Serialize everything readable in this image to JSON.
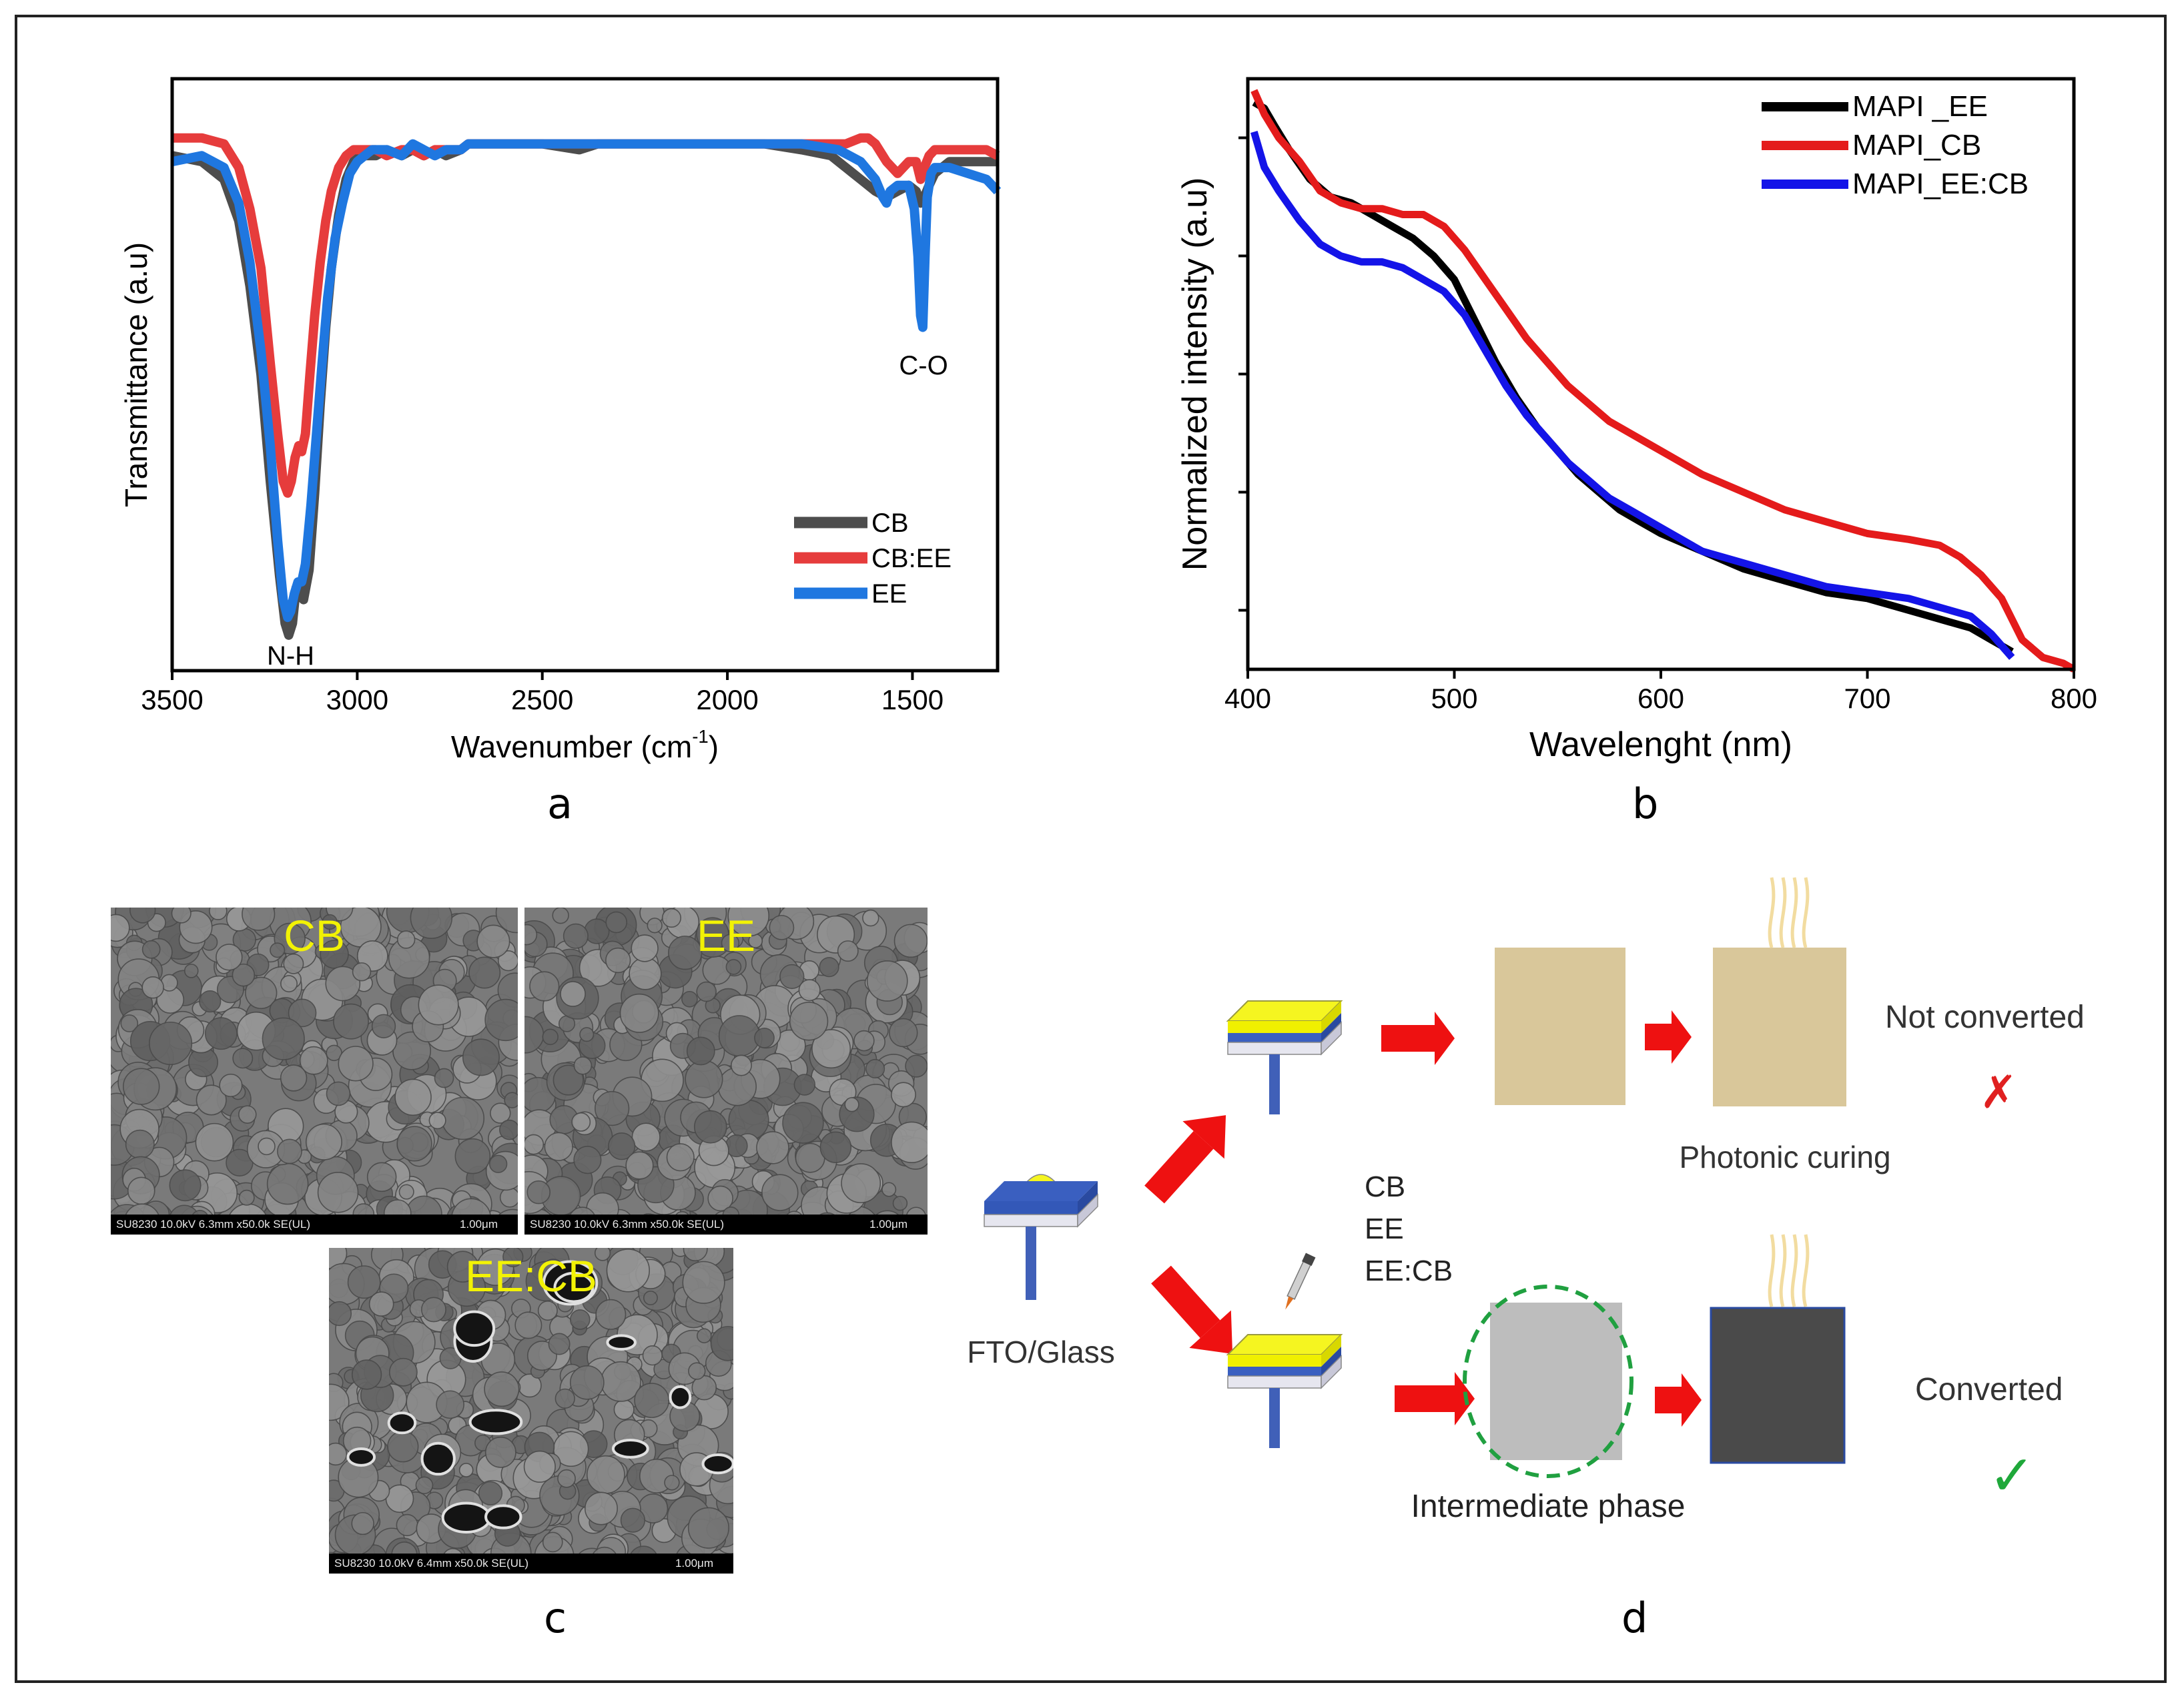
{
  "chart_data": [
    {
      "type": "line",
      "panel": "a",
      "title": "",
      "xlabel": "Wavenumber (cm",
      "xlabel_sup": "-1",
      "xlabel_end": ")",
      "ylabel": "Transmittance (a.u)",
      "xlim": [
        3500,
        1270
      ],
      "ylim": [
        0,
        100
      ],
      "xticks": [
        3500,
        3000,
        2500,
        2000,
        1500
      ],
      "annotations": [
        {
          "text": "N-H",
          "x": 3180,
          "y": 6
        },
        {
          "text": "C-O",
          "x": 1470,
          "y": 55
        }
      ],
      "legend": "lower-right",
      "series": [
        {
          "name": "CB",
          "color": "#4d4d4d",
          "x": [
            3500,
            3420,
            3360,
            3320,
            3290,
            3260,
            3235,
            3210,
            3195,
            3185,
            3175,
            3165,
            3155,
            3145,
            3130,
            3115,
            3100,
            3085,
            3070,
            3050,
            3030,
            3010,
            2990,
            2970,
            2950,
            2920,
            2880,
            2850,
            2820,
            2790,
            2760,
            2720,
            2700,
            2650,
            2600,
            2500,
            2400,
            2350,
            2300,
            2200,
            2100,
            2000,
            1900,
            1800,
            1720,
            1680,
            1640,
            1600,
            1570,
            1540,
            1510,
            1490,
            1478,
            1468,
            1455,
            1440,
            1400,
            1350,
            1300,
            1270
          ],
          "y": [
            87,
            86,
            83,
            76,
            65,
            50,
            32,
            16,
            8,
            6,
            8,
            14,
            14,
            12,
            17,
            30,
            45,
            58,
            68,
            77,
            83,
            86,
            87,
            87,
            87,
            88,
            87,
            88,
            87,
            88,
            87,
            88,
            89,
            89,
            89,
            89,
            88,
            89,
            89,
            89,
            89,
            89,
            89,
            88,
            87,
            85,
            83,
            81,
            80,
            81,
            82,
            81,
            79,
            80,
            82,
            84,
            86,
            86,
            86,
            86
          ]
        },
        {
          "name": "CB:EE",
          "color": "#e63c3c",
          "x": [
            3500,
            3420,
            3360,
            3320,
            3290,
            3260,
            3235,
            3215,
            3200,
            3188,
            3178,
            3168,
            3158,
            3150,
            3140,
            3128,
            3115,
            3100,
            3085,
            3070,
            3050,
            3030,
            3010,
            2990,
            2970,
            2950,
            2920,
            2880,
            2850,
            2820,
            2790,
            2760,
            2720,
            2700,
            2650,
            2600,
            2500,
            2400,
            2300,
            2200,
            2100,
            2000,
            1900,
            1800,
            1720,
            1680,
            1640,
            1620,
            1600,
            1570,
            1540,
            1510,
            1490,
            1478,
            1468,
            1455,
            1440,
            1400,
            1350,
            1300,
            1270
          ],
          "y": [
            90,
            90,
            89,
            85,
            78,
            68,
            52,
            40,
            32,
            30,
            32,
            36,
            38,
            37,
            40,
            50,
            60,
            69,
            76,
            81,
            85,
            87,
            88,
            88,
            88,
            88,
            87,
            88,
            88,
            87,
            88,
            88,
            88,
            89,
            89,
            89,
            89,
            89,
            89,
            89,
            89,
            89,
            89,
            89,
            89,
            89,
            90,
            90,
            89,
            86,
            84,
            86,
            86,
            83,
            85,
            87,
            88,
            88,
            88,
            88,
            87
          ]
        },
        {
          "name": "EE",
          "color": "#1f77e0",
          "x": [
            3500,
            3420,
            3360,
            3320,
            3290,
            3260,
            3235,
            3215,
            3200,
            3188,
            3180,
            3170,
            3160,
            3150,
            3140,
            3125,
            3110,
            3095,
            3080,
            3060,
            3040,
            3020,
            3000,
            2980,
            2960,
            2920,
            2880,
            2850,
            2820,
            2790,
            2760,
            2720,
            2700,
            2650,
            2600,
            2500,
            2400,
            2300,
            2200,
            2100,
            2000,
            1900,
            1800,
            1700,
            1640,
            1600,
            1580,
            1570,
            1560,
            1540,
            1510,
            1495,
            1485,
            1478,
            1472,
            1466,
            1460,
            1450,
            1440,
            1400,
            1350,
            1300,
            1270
          ],
          "y": [
            86,
            87,
            85,
            79,
            69,
            54,
            38,
            22,
            12,
            9,
            10,
            13,
            15,
            15,
            18,
            28,
            40,
            52,
            63,
            73,
            79,
            84,
            86,
            87,
            88,
            88,
            87,
            89,
            88,
            87,
            88,
            88,
            89,
            89,
            89,
            89,
            89,
            89,
            89,
            89,
            89,
            89,
            89,
            88,
            86,
            83,
            80,
            79,
            81,
            82,
            82,
            78,
            70,
            60,
            58,
            70,
            80,
            84,
            85,
            85,
            84,
            83,
            81
          ]
        }
      ]
    },
    {
      "type": "line",
      "panel": "b",
      "title": "",
      "xlabel": "Wavelenght (nm)",
      "ylabel": "Normalized intensity (a.u)",
      "xlim": [
        400,
        800
      ],
      "ylim": [
        0,
        100
      ],
      "xticks": [
        400,
        500,
        600,
        700,
        800
      ],
      "legend": "top-right",
      "series": [
        {
          "name": "MAPI _EE",
          "color": "#000000",
          "x": [
            403,
            408,
            413,
            420,
            430,
            440,
            450,
            460,
            470,
            480,
            490,
            500,
            510,
            520,
            530,
            540,
            550,
            560,
            570,
            580,
            590,
            600,
            620,
            640,
            660,
            680,
            700,
            720,
            740,
            750,
            760,
            770
          ],
          "y": [
            96,
            95,
            92,
            88,
            83,
            80,
            79,
            77,
            75,
            73,
            70,
            66,
            59,
            52,
            46,
            41,
            37,
            33,
            30,
            27,
            25,
            23,
            20,
            17,
            15,
            13,
            12,
            10,
            8,
            7,
            5,
            3
          ]
        },
        {
          "name": "MAPI_CB",
          "color": "#e41b1b",
          "x": [
            403,
            408,
            415,
            425,
            435,
            445,
            455,
            465,
            475,
            485,
            495,
            505,
            515,
            525,
            535,
            545,
            555,
            565,
            575,
            585,
            595,
            605,
            620,
            640,
            660,
            680,
            700,
            720,
            735,
            745,
            755,
            765,
            775,
            785,
            795,
            800
          ],
          "y": [
            98,
            94,
            90,
            86,
            81,
            79,
            78,
            78,
            77,
            77,
            75,
            71,
            66,
            61,
            56,
            52,
            48,
            45,
            42,
            40,
            38,
            36,
            33,
            30,
            27,
            25,
            23,
            22,
            21,
            19,
            16,
            12,
            5,
            2,
            1,
            0
          ]
        },
        {
          "name": "MAPI_EE:CB",
          "color": "#1414e8",
          "x": [
            403,
            408,
            415,
            425,
            435,
            445,
            455,
            465,
            475,
            485,
            495,
            505,
            515,
            525,
            535,
            545,
            555,
            565,
            575,
            585,
            595,
            605,
            620,
            640,
            660,
            680,
            700,
            720,
            740,
            750,
            760,
            770
          ],
          "y": [
            91,
            85,
            81,
            76,
            72,
            70,
            69,
            69,
            68,
            66,
            64,
            60,
            54,
            48,
            43,
            39,
            35,
            32,
            29,
            27,
            25,
            23,
            20,
            18,
            16,
            14,
            13,
            12,
            10,
            9,
            6,
            2
          ]
        }
      ]
    }
  ],
  "panel_labels": {
    "a": "a",
    "b": "b",
    "c": "c",
    "d": "d"
  },
  "sem_images": [
    {
      "title": "CB",
      "info": "SU8230 10.0kV 6.3mm x50.0k SE(UL)",
      "scale": "1.00μm"
    },
    {
      "title": "EE",
      "info": "SU8230 10.0kV 6.3mm x50.0k SE(UL)",
      "scale": "1.00μm"
    },
    {
      "title": "EE:CB",
      "info": "SU8230 10.0kV 6.4mm x50.0k SE(UL)",
      "scale": "1.00μm"
    }
  ],
  "schematic": {
    "substrate_label": "FTO/Glass",
    "solvents": [
      "CB",
      "EE",
      "EE:CB"
    ],
    "top_result": "Not converted",
    "bottom_result": "Converted",
    "curing_label": "Photonic curing",
    "intermediate_label": "Intermediate phase",
    "cross_mark": "✗",
    "check_mark": "✓",
    "colors": {
      "arrow": "#ee1111",
      "film_tan": "#d9c79a",
      "film_gray": "#bdbdbd",
      "film_dark": "#4a4a4a",
      "circle": "#20a040",
      "check": "#1fa83a",
      "cross": "#e02020"
    }
  }
}
